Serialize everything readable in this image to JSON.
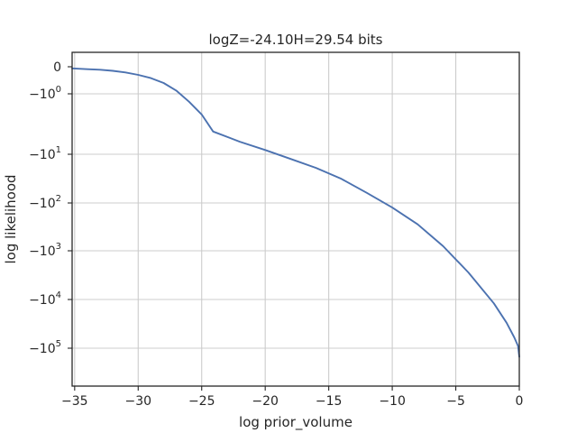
{
  "chart_data": {
    "type": "line",
    "title": "logZ=-24.10H=29.54 bits",
    "xlabel": "log prior_volume",
    "ylabel": "log likelihood",
    "xlim": [
      -35.2,
      0
    ],
    "xscale": "linear",
    "yscale": "symlog",
    "x_ticks": [
      -35,
      -30,
      -25,
      -20,
      -15,
      -10,
      -5,
      0
    ],
    "x_tick_labels": [
      "−35",
      "−30",
      "−25",
      "−20",
      "−15",
      "−10",
      "−5",
      "0"
    ],
    "y_ticks": [
      0,
      -1,
      -10,
      -100,
      -1000,
      -10000,
      -100000
    ],
    "y_tick_labels": [
      {
        "base": "0",
        "exp": ""
      },
      {
        "base": "−10",
        "exp": "0"
      },
      {
        "base": "−10",
        "exp": "1"
      },
      {
        "base": "−10",
        "exp": "2"
      },
      {
        "base": "−10",
        "exp": "3"
      },
      {
        "base": "−10",
        "exp": "4"
      },
      {
        "base": "−10",
        "exp": "5"
      }
    ],
    "grid": true,
    "series": [
      {
        "color": "#4c72b0",
        "x": [
          -35.2,
          -34,
          -33,
          -32,
          -31,
          -30,
          -29,
          -28,
          -27,
          -26,
          -25,
          -24.1,
          -22,
          -20,
          -18,
          -16,
          -14,
          -12,
          -10,
          -8,
          -6,
          -4,
          -2,
          -1,
          -0.4,
          -0.1,
          0
        ],
        "y": [
          -0.06,
          -0.09,
          -0.11,
          -0.15,
          -0.21,
          -0.3,
          -0.42,
          -0.6,
          -0.88,
          -1.35,
          -2.2,
          -4.2,
          -6.2,
          -8.5,
          -12.5,
          -19,
          -32,
          -62,
          -125,
          -280,
          -800,
          -2800,
          -12000,
          -30000,
          -60000,
          -90000,
          -150000
        ]
      }
    ]
  }
}
